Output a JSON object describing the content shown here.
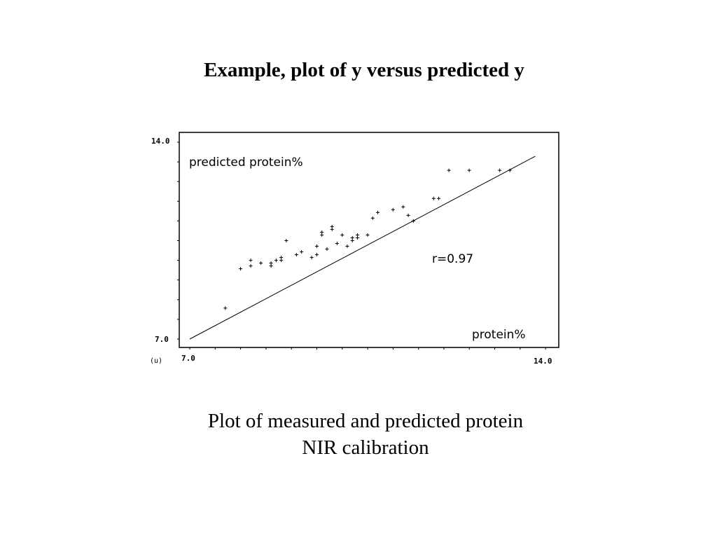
{
  "slide": {
    "title": "Example, plot of y versus predicted y",
    "caption_line1": "Plot of measured and predicted protein",
    "caption_line2": "NIR calibration"
  },
  "chart_data": {
    "type": "scatter",
    "ylabel": "predicted  protein%",
    "xlabel": "protein%",
    "annotation": "r=0.97",
    "corner_label": "(u)",
    "x_tick_labels": [
      "7.0",
      "14.0"
    ],
    "y_tick_labels": [
      "7.0",
      "14.0"
    ],
    "xlim": [
      7.0,
      14.0
    ],
    "ylim": [
      7.0,
      14.0
    ],
    "fit_line": {
      "x": [
        7.0,
        13.8
      ],
      "y": [
        7.0,
        13.5
      ]
    },
    "series": [
      {
        "x": [
          7.7,
          8.0,
          8.2,
          8.2,
          8.4,
          8.6,
          8.6,
          8.7,
          8.8,
          8.8,
          8.9,
          9.1,
          9.2,
          9.4,
          9.5,
          9.5,
          9.6,
          9.6,
          9.7,
          9.8,
          9.8,
          9.9,
          10.0,
          10.1,
          10.2,
          10.2,
          10.3,
          10.3,
          10.5,
          10.6,
          10.7,
          11.0,
          11.2,
          11.3,
          11.4,
          11.8,
          11.9,
          12.1,
          12.5,
          13.1,
          13.3
        ],
        "y": [
          8.1,
          9.5,
          9.6,
          9.8,
          9.7,
          9.6,
          9.7,
          9.8,
          9.9,
          9.8,
          10.5,
          10.0,
          10.1,
          9.9,
          10.0,
          10.3,
          10.7,
          10.8,
          10.2,
          10.9,
          11.0,
          10.4,
          10.7,
          10.3,
          10.5,
          10.6,
          10.6,
          10.7,
          10.7,
          11.3,
          11.5,
          11.6,
          11.7,
          11.4,
          11.2,
          12.0,
          12.0,
          13.0,
          13.0,
          13.0,
          13.0
        ]
      }
    ]
  }
}
